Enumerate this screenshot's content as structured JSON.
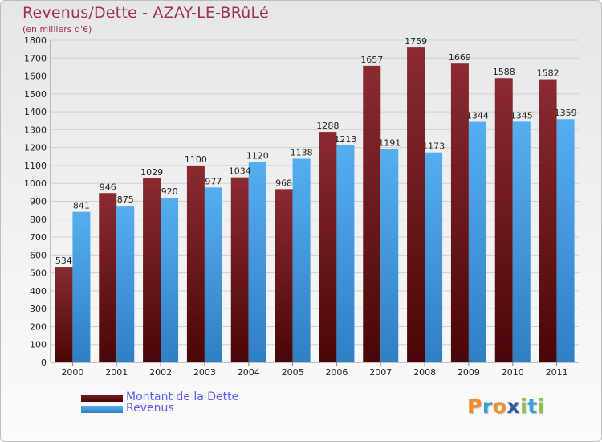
{
  "header": {
    "title": "Revenus/Dette - AZAY-LE-BRûLé",
    "subtitle": "(en milliers d'€)"
  },
  "legend": {
    "debt_label": "Montant de la Dette",
    "revenue_label": "Revenus"
  },
  "logo": {
    "text": "Proxiti",
    "letters": [
      "P",
      "r",
      "o",
      "x",
      "i",
      "t",
      "i"
    ],
    "letter_colors": [
      "#f28c28",
      "#3aa0d8",
      "#f28c28",
      "#2c5aa0",
      "#8bc34a",
      "#3aa0d8",
      "#8bc34a"
    ]
  },
  "colors": {
    "debt": "#7a1f23",
    "debt_dark": "#4a0608",
    "revenue": "#4da3e6",
    "revenue_dark": "#2f7fc4",
    "grid": "#d0d0d0",
    "axis_text": "#222222"
  },
  "chart_data": {
    "type": "bar",
    "title": "Revenus/Dette - AZAY-LE-BRûLé",
    "subtitle": "(en milliers d'€)",
    "categories": [
      "2000",
      "2001",
      "2002",
      "2003",
      "2004",
      "2005",
      "2006",
      "2007",
      "2008",
      "2009",
      "2010",
      "2011"
    ],
    "series": [
      {
        "name": "Montant de la Dette",
        "values": [
          534,
          946,
          1029,
          1100,
          1034,
          968,
          1288,
          1657,
          1759,
          1669,
          1588,
          1582
        ]
      },
      {
        "name": "Revenus",
        "values": [
          841,
          875,
          920,
          977,
          1120,
          1138,
          1213,
          1191,
          1173,
          1344,
          1345,
          1359
        ]
      }
    ],
    "ylim": [
      0,
      1800
    ],
    "yticks": [
      0,
      100,
      200,
      300,
      400,
      500,
      600,
      700,
      800,
      900,
      1000,
      1100,
      1200,
      1300,
      1400,
      1500,
      1600,
      1700,
      1800
    ],
    "grid": true,
    "legend_position": "bottom-left"
  }
}
